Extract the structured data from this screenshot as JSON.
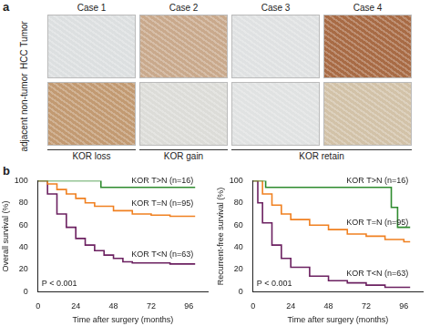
{
  "panel_a": {
    "label": "a",
    "cases": [
      "Case 1",
      "Case 2",
      "Case 3",
      "Case 4"
    ],
    "rows": [
      "HCC Tumor",
      "adjacent non-tumor"
    ],
    "group_labels": [
      "KOR loss",
      "KOR gain",
      "KOR retain"
    ]
  },
  "panel_b": {
    "label": "b"
  },
  "chart_data": [
    {
      "type": "line",
      "x_label": "Time after surgery (months)",
      "y_label": "Overall survival (%)",
      "annotations": [
        "P < 0.001"
      ],
      "line_style": "step",
      "grid": false,
      "xlim": [
        0,
        108
      ],
      "xticks": [
        0,
        24,
        48,
        72,
        96
      ],
      "ylim": [
        0,
        100
      ],
      "yticks": [
        0,
        20,
        40,
        60,
        80,
        100
      ],
      "series": [
        {
          "name": "KOR T>N (n=16)",
          "color": "#2e8b2e",
          "x": [
            0,
            40,
            100
          ],
          "values": [
            100,
            94,
            94
          ]
        },
        {
          "name": "KOR T=N (n=95)",
          "color": "#f08020",
          "x": [
            0,
            6,
            12,
            18,
            24,
            30,
            36,
            48,
            60,
            72,
            84,
            100
          ],
          "values": [
            100,
            97,
            92,
            88,
            84,
            80,
            77,
            73,
            70,
            69,
            68,
            68
          ]
        },
        {
          "name": "KOR T<N (n=63)",
          "color": "#6b2060",
          "x": [
            0,
            6,
            12,
            18,
            24,
            30,
            36,
            42,
            48,
            54,
            60,
            72,
            84,
            100
          ],
          "values": [
            100,
            88,
            70,
            58,
            48,
            42,
            37,
            33,
            30,
            27,
            26,
            26,
            25,
            25
          ]
        }
      ]
    },
    {
      "type": "line",
      "x_label": "Time after surgery (months)",
      "y_label": "Recurrent-free survival (%)",
      "annotations": [
        "P < 0.001"
      ],
      "line_style": "step",
      "grid": false,
      "xlim": [
        0,
        108
      ],
      "xticks": [
        0,
        24,
        48,
        72,
        96
      ],
      "ylim": [
        0,
        100
      ],
      "yticks": [
        0,
        20,
        40,
        60,
        80,
        100
      ],
      "series": [
        {
          "name": "KOR T>N (n=16)",
          "color": "#2e8b2e",
          "x": [
            0,
            8,
            86,
            88,
            92,
            100
          ],
          "values": [
            100,
            94,
            94,
            76,
            58,
            58
          ]
        },
        {
          "name": "KOR T=N (n=95)",
          "color": "#f08020",
          "x": [
            0,
            6,
            12,
            18,
            24,
            36,
            48,
            60,
            72,
            84,
            96,
            100
          ],
          "values": [
            100,
            88,
            78,
            70,
            65,
            60,
            56,
            52,
            50,
            47,
            45,
            45
          ]
        },
        {
          "name": "KOR T<N (n=63)",
          "color": "#6b2060",
          "x": [
            0,
            3,
            6,
            12,
            18,
            24,
            36,
            48,
            60,
            72,
            84,
            100
          ],
          "values": [
            100,
            80,
            62,
            42,
            30,
            22,
            14,
            10,
            8,
            6,
            4,
            4
          ]
        }
      ]
    }
  ]
}
